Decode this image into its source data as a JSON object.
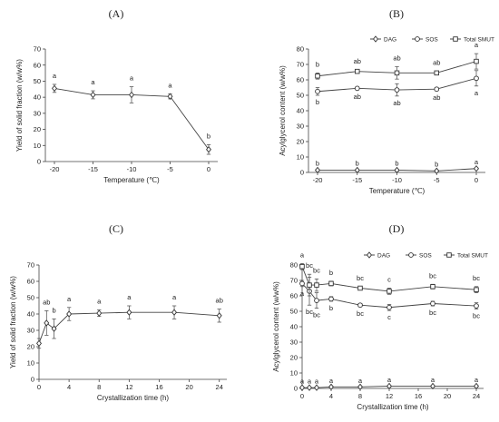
{
  "figure": {
    "panels": [
      "(A)",
      "(B)",
      "(C)",
      "(D)"
    ]
  },
  "chart_data": [
    {
      "id": "A",
      "type": "line",
      "panel_label": "(A)",
      "xlabel": "Temperature (℃)",
      "ylabel": "Yield of solid fraction (w/w%)",
      "x": [
        -20,
        -15,
        -10,
        -5,
        0
      ],
      "x_ticks": [
        "-20",
        "-15",
        "-10",
        "-5",
        "0"
      ],
      "ylim": [
        0,
        70
      ],
      "y_ticks": [
        0,
        10,
        20,
        30,
        40,
        50,
        60,
        70
      ],
      "series": [
        {
          "marker": "diamond",
          "values": [
            45.5,
            41.5,
            41.5,
            40.5,
            7.5
          ],
          "errors": [
            2.5,
            2.5,
            5,
            1.5,
            3
          ],
          "labels": [
            "a",
            "a",
            "a",
            "a",
            "b"
          ]
        }
      ]
    },
    {
      "id": "B",
      "type": "line",
      "panel_label": "(B)",
      "xlabel": "Temperature (℃)",
      "ylabel": "Acylglycerol content (w/w%)",
      "x": [
        -20,
        -15,
        -10,
        -5,
        0
      ],
      "x_ticks": [
        "-20",
        "-15",
        "-10",
        "-5",
        "0"
      ],
      "ylim": [
        0,
        80
      ],
      "y_ticks": [
        0,
        10,
        20,
        30,
        40,
        50,
        60,
        70,
        80
      ],
      "legend": {
        "position": "top",
        "entries": [
          "DAG",
          "SOS",
          "Total SMUT"
        ]
      },
      "series": [
        {
          "name": "DAG",
          "marker": "diamond",
          "values": [
            1.5,
            1.5,
            1.5,
            1.0,
            2.5
          ],
          "errors": [
            0.5,
            0.5,
            0.5,
            0.5,
            0.5
          ],
          "labels": [
            "b",
            "b",
            "b",
            "b",
            "a"
          ]
        },
        {
          "name": "SOS",
          "marker": "circle",
          "values": [
            52.5,
            54.5,
            53.5,
            54,
            61
          ],
          "errors": [
            2.5,
            1,
            4,
            1,
            5
          ],
          "labels": [
            "b",
            "ab",
            "ab",
            "ab",
            "a"
          ]
        },
        {
          "name": "Total SMUT",
          "marker": "square",
          "values": [
            62.5,
            65.5,
            64.5,
            64.5,
            72
          ],
          "errors": [
            2,
            1,
            4,
            1,
            5
          ],
          "labels": [
            "b",
            "ab",
            "ab",
            "ab",
            "a"
          ]
        }
      ]
    },
    {
      "id": "C",
      "type": "line",
      "panel_label": "(C)",
      "xlabel": "Crystallization time (h)",
      "ylabel": "Yield of solid fraction (w/w%)",
      "x": [
        0,
        1,
        2,
        4,
        8,
        12,
        18,
        24
      ],
      "x_ticks": [
        "0",
        "4",
        "8",
        "12",
        "16",
        "20",
        "24"
      ],
      "x_tick_values": [
        0,
        4,
        8,
        12,
        16,
        20,
        24
      ],
      "xlim": [
        0,
        25
      ],
      "ylim": [
        0,
        70
      ],
      "y_ticks": [
        0,
        10,
        20,
        30,
        40,
        50,
        60,
        70
      ],
      "series": [
        {
          "marker": "diamond",
          "values": [
            22,
            34.5,
            31,
            40,
            40.5,
            41,
            41,
            39
          ],
          "errors": [
            3,
            7.5,
            6,
            4,
            2,
            4,
            4,
            4
          ],
          "labels": [
            "",
            "ab",
            "b",
            "a",
            "a",
            "a",
            "a",
            "ab"
          ]
        }
      ]
    },
    {
      "id": "D",
      "type": "line",
      "panel_label": "(D)",
      "xlabel": "Crystallization time (h)",
      "ylabel": "Acylglycerol content (w/w%)",
      "x": [
        0,
        1,
        2,
        4,
        8,
        12,
        18,
        24
      ],
      "x_ticks": [
        "0",
        "4",
        "8",
        "12",
        "16",
        "20",
        "24"
      ],
      "x_tick_values": [
        0,
        4,
        8,
        12,
        16,
        20,
        24
      ],
      "xlim": [
        0,
        25
      ],
      "ylim": [
        0,
        80
      ],
      "y_ticks": [
        0,
        10,
        20,
        30,
        40,
        50,
        60,
        70,
        80
      ],
      "legend": {
        "position": "top",
        "entries": [
          "DAG",
          "SOS",
          "Total SMUT"
        ]
      },
      "series": [
        {
          "name": "DAG",
          "marker": "diamond",
          "values": [
            0.5,
            0.5,
            0.5,
            1,
            1,
            1.5,
            1.5,
            1.5
          ],
          "errors": [
            0.3,
            0.3,
            0.3,
            0.3,
            0.3,
            0.3,
            0.3,
            0.3
          ],
          "labels": [
            "a",
            "a",
            "a",
            "a",
            "a",
            "a",
            "a",
            "a"
          ]
        },
        {
          "name": "SOS",
          "marker": "circle",
          "values": [
            68,
            63,
            57,
            58,
            54,
            52.5,
            55,
            53.5
          ],
          "errors": [
            2,
            9,
            5,
            1.5,
            1,
            2,
            1.5,
            2
          ],
          "labels": [
            "a",
            "bc",
            "bc",
            "b",
            "bc",
            "c",
            "bc",
            "bc"
          ]
        },
        {
          "name": "Total SMUT",
          "marker": "square",
          "values": [
            79,
            67,
            67,
            68,
            65,
            63,
            66,
            64
          ],
          "errors": [
            2,
            7,
            4,
            1.5,
            1,
            2,
            1.5,
            2
          ],
          "labels": [
            "a",
            "bc",
            "bc",
            "b",
            "bc",
            "c",
            "bc",
            "bc"
          ]
        }
      ]
    }
  ]
}
